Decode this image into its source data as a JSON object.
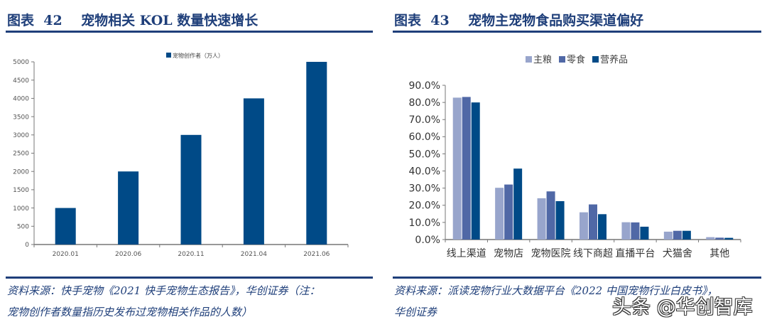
{
  "left": {
    "title": "图表  42    宠物相关 KOL 数量快速增长",
    "source_line1": "资料来源：快手宠物《2021 快手宠物生态报告》，华创证券（注：",
    "source_line2": "宠物创作者数量指历史发布过宠物相关作品的人数）"
  },
  "right": {
    "title": "图表  43    宠物主宠物食品购买渠道偏好",
    "source_line1": "资料来源：派读宠物行业大数据平台《2022 中国宠物行业白皮书》，",
    "source_line2": "华创证券"
  },
  "watermark": "头条 @华创智库",
  "chart_data": [
    {
      "type": "bar",
      "categories": [
        "2020.01",
        "2020.06",
        "2020.11",
        "2021.04",
        "2021.06"
      ],
      "series": [
        {
          "name": "宠物创作者（万人）",
          "values": [
            1000,
            2000,
            3000,
            4000,
            5000
          ],
          "color": "#004a87"
        }
      ],
      "ylim": [
        0,
        5000
      ],
      "yticks": [
        0,
        500,
        1000,
        1500,
        2000,
        2500,
        3000,
        3500,
        4000,
        4500,
        5000
      ],
      "legend": "top-center",
      "grid": false
    },
    {
      "type": "bar",
      "categories": [
        "线上渠道",
        "宠物店",
        "宠物医院",
        "线下商超",
        "直播平台",
        "犬猫舍",
        "其他"
      ],
      "series": [
        {
          "name": "主粮",
          "values": [
            82.8,
            30.2,
            24.1,
            15.9,
            10.1,
            4.6,
            1.4
          ],
          "color": "#98a5cc"
        },
        {
          "name": "零食",
          "values": [
            83.2,
            32.1,
            28.1,
            20.5,
            10.0,
            5.1,
            1.1
          ],
          "color": "#5068a6"
        },
        {
          "name": "营养品",
          "values": [
            80.0,
            41.4,
            22.4,
            14.8,
            7.5,
            5.1,
            1.0
          ],
          "color": "#004a87"
        }
      ],
      "ylim": [
        0,
        90
      ],
      "yticks": [
        "0.0%",
        "10.0%",
        "20.0%",
        "30.0%",
        "40.0%",
        "50.0%",
        "60.0%",
        "70.0%",
        "80.0%",
        "90.0%"
      ],
      "legend": "top-center",
      "grid": false
    }
  ]
}
